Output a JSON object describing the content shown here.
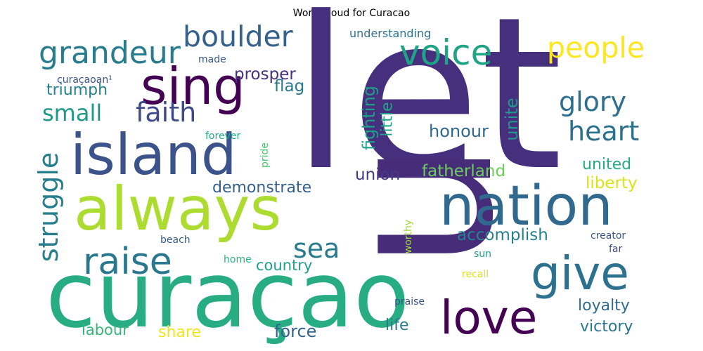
{
  "chart_data": {
    "type": "wordcloud",
    "title": "Word Cloud for Curacao",
    "colormap": "viridis",
    "background": "#ffffff",
    "words": [
      {
        "text": "let",
        "weight": 1.0,
        "color": "#46307e"
      },
      {
        "text": "u",
        "weight": 0.98,
        "color": "#472c7a",
        "rotate": true
      },
      {
        "text": "curaçao",
        "weight": 0.62,
        "color": "#27ad81"
      },
      {
        "text": "always",
        "weight": 0.55,
        "color": "#addc30"
      },
      {
        "text": "island",
        "weight": 0.5,
        "color": "#3b528b"
      },
      {
        "text": "nation",
        "weight": 0.5,
        "color": "#31688e"
      },
      {
        "text": "sing",
        "weight": 0.45,
        "color": "#440154"
      },
      {
        "text": "give",
        "weight": 0.43,
        "color": "#2c728e"
      },
      {
        "text": "love",
        "weight": 0.4,
        "color": "#440154"
      },
      {
        "text": "voice",
        "weight": 0.31,
        "color": "#20a486"
      },
      {
        "text": "raise",
        "weight": 0.3,
        "color": "#2a788e"
      },
      {
        "text": "grandeur",
        "weight": 0.28,
        "color": "#287c8e"
      },
      {
        "text": "boulder",
        "weight": 0.26,
        "color": "#34618d"
      },
      {
        "text": "people",
        "weight": 0.27,
        "color": "#fde725"
      },
      {
        "text": "faith",
        "weight": 0.24,
        "color": "#3e4a89"
      },
      {
        "text": "glory",
        "weight": 0.24,
        "color": "#2e6f8e"
      },
      {
        "text": "heart",
        "weight": 0.24,
        "color": "#2d708e"
      },
      {
        "text": "struggle",
        "weight": 0.22,
        "color": "#277f8e",
        "rotate": true
      },
      {
        "text": "sea",
        "weight": 0.22,
        "color": "#297b8e"
      },
      {
        "text": "small",
        "weight": 0.19,
        "color": "#1f998a"
      },
      {
        "text": "fighting",
        "weight": 0.16,
        "color": "#1f9e89",
        "rotate": true
      },
      {
        "text": "little",
        "weight": 0.15,
        "color": "#21a585",
        "rotate": true
      },
      {
        "text": "unite",
        "weight": 0.15,
        "color": "#1f9a8a",
        "rotate": true
      },
      {
        "text": "honour",
        "weight": 0.15,
        "color": "#31688e"
      },
      {
        "text": "prosper",
        "weight": 0.14,
        "color": "#46327e"
      },
      {
        "text": "triumph",
        "weight": 0.14,
        "color": "#26828e"
      },
      {
        "text": "flag",
        "weight": 0.14,
        "color": "#2a788e"
      },
      {
        "text": "union",
        "weight": 0.15,
        "color": "#443983"
      },
      {
        "text": "fatherland",
        "weight": 0.15,
        "color": "#6ccd5a"
      },
      {
        "text": "united",
        "weight": 0.14,
        "color": "#25ab82"
      },
      {
        "text": "liberty",
        "weight": 0.14,
        "color": "#d8e219"
      },
      {
        "text": "demonstrate",
        "weight": 0.15,
        "color": "#355f8d"
      },
      {
        "text": "accomplish",
        "weight": 0.15,
        "color": "#26828e"
      },
      {
        "text": "country",
        "weight": 0.14,
        "color": "#1f9e89"
      },
      {
        "text": "loyalty",
        "weight": 0.14,
        "color": "#2f6c8e"
      },
      {
        "text": "victory",
        "weight": 0.14,
        "color": "#2a788e"
      },
      {
        "text": "force",
        "weight": 0.14,
        "color": "#32648e"
      },
      {
        "text": "share",
        "weight": 0.14,
        "color": "#f1e51d"
      },
      {
        "text": "labour",
        "weight": 0.14,
        "color": "#35b779"
      },
      {
        "text": "life",
        "weight": 0.14,
        "color": "#287d8e"
      },
      {
        "text": "understanding",
        "weight": 0.1,
        "color": "#2d718e"
      },
      {
        "text": "made",
        "weight": 0.08,
        "color": "#38588c"
      },
      {
        "text": "curaçaoan¹",
        "weight": 0.08,
        "color": "#3b528b"
      },
      {
        "text": "forever",
        "weight": 0.08,
        "color": "#22a884"
      },
      {
        "text": "pride",
        "weight": 0.08,
        "color": "#4ac16d",
        "rotate": true
      },
      {
        "text": "worthy",
        "weight": 0.08,
        "color": "#a2da37",
        "rotate": true
      },
      {
        "text": "beach",
        "weight": 0.08,
        "color": "#355f8d"
      },
      {
        "text": "home",
        "weight": 0.08,
        "color": "#2db27d"
      },
      {
        "text": "sun",
        "weight": 0.08,
        "color": "#1fa088"
      },
      {
        "text": "creator",
        "weight": 0.08,
        "color": "#39568c"
      },
      {
        "text": "far",
        "weight": 0.08,
        "color": "#3e4989"
      },
      {
        "text": "recall",
        "weight": 0.08,
        "color": "#dde318"
      },
      {
        "text": "praise",
        "weight": 0.08,
        "color": "#3b528b"
      }
    ]
  }
}
